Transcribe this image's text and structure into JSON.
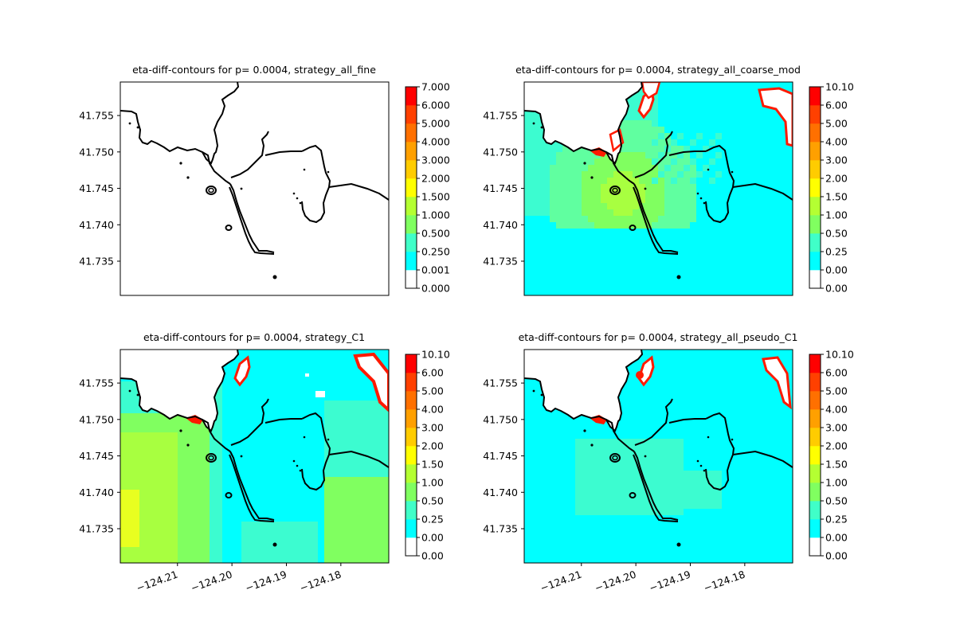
{
  "chart_data": [
    {
      "type": "heatmap",
      "title": "eta-diff-contours for p= 0.0004, strategy_all_fine",
      "field": "empty",
      "yticks": [
        "41.755",
        "41.750",
        "41.745",
        "41.740",
        "41.735"
      ],
      "ytick_values": [
        41.755,
        41.75,
        41.745,
        41.74,
        41.735
      ],
      "xticks": [],
      "colorbar": {
        "labels": [
          "0.000",
          "0.001",
          "0.250",
          "0.500",
          "1.000",
          "1.500",
          "2.000",
          "3.000",
          "4.000",
          "5.000",
          "6.000",
          "7.000"
        ],
        "colors": [
          "#ffffff",
          "#00ffff",
          "#40ffc8",
          "#80ff60",
          "#b4ff32",
          "#ffff00",
          "#ffcc00",
          "#ffa000",
          "#ff7000",
          "#ff4000",
          "#ff0000"
        ]
      }
    },
    {
      "type": "heatmap",
      "title": "eta-diff-contours for p= 0.0004, strategy_all_coarse_mod",
      "field": "coarse",
      "yticks": [
        "41.755",
        "41.750",
        "41.745",
        "41.740",
        "41.735"
      ],
      "ytick_values": [
        41.755,
        41.75,
        41.745,
        41.74,
        41.735
      ],
      "xticks": [],
      "colorbar": {
        "labels": [
          "0.00",
          "0.00",
          "0.25",
          "0.50",
          "1.00",
          "1.50",
          "2.00",
          "3.00",
          "4.00",
          "5.00",
          "6.00",
          "10.10"
        ],
        "colors": [
          "#ffffff",
          "#00ffff",
          "#40ffc8",
          "#80ff60",
          "#b4ff32",
          "#ffff00",
          "#ffcc00",
          "#ffa000",
          "#ff7000",
          "#ff4000",
          "#ff0000"
        ]
      }
    },
    {
      "type": "heatmap",
      "title": "eta-diff-contours for p= 0.0004, strategy_C1",
      "field": "c1",
      "yticks": [
        "41.755",
        "41.750",
        "41.745",
        "41.740",
        "41.735"
      ],
      "ytick_values": [
        41.755,
        41.75,
        41.745,
        41.74,
        41.735
      ],
      "xticks": [
        "−124.21",
        "−124.20",
        "−124.19",
        "−124.18"
      ],
      "xtick_values": [
        -124.21,
        -124.2,
        -124.19,
        -124.18
      ],
      "colorbar": {
        "labels": [
          "0.00",
          "0.00",
          "0.25",
          "0.50",
          "1.00",
          "1.50",
          "2.00",
          "3.00",
          "4.00",
          "5.00",
          "6.00",
          "10.10"
        ],
        "colors": [
          "#ffffff",
          "#00ffff",
          "#40ffc8",
          "#80ff60",
          "#b4ff32",
          "#ffff00",
          "#ffcc00",
          "#ffa000",
          "#ff7000",
          "#ff4000",
          "#ff0000"
        ]
      }
    },
    {
      "type": "heatmap",
      "title": "eta-diff-contours for p= 0.0004, strategy_all_pseudo_C1",
      "field": "pseudo",
      "yticks": [
        "41.755",
        "41.750",
        "41.745",
        "41.740",
        "41.735"
      ],
      "ytick_values": [
        41.755,
        41.75,
        41.745,
        41.74,
        41.735
      ],
      "xticks": [
        "−124.21",
        "−124.20",
        "−124.19",
        "−124.18"
      ],
      "xtick_values": [
        -124.21,
        -124.2,
        -124.19,
        -124.18
      ],
      "colorbar": {
        "labels": [
          "0.00",
          "0.00",
          "0.25",
          "0.50",
          "1.00",
          "1.50",
          "2.00",
          "3.00",
          "4.00",
          "5.00",
          "6.00",
          "10.10"
        ],
        "colors": [
          "#ffffff",
          "#00ffff",
          "#40ffc8",
          "#80ff60",
          "#b4ff32",
          "#ffff00",
          "#ffcc00",
          "#ffa000",
          "#ff7000",
          "#ff4000",
          "#ff0000"
        ]
      }
    }
  ]
}
